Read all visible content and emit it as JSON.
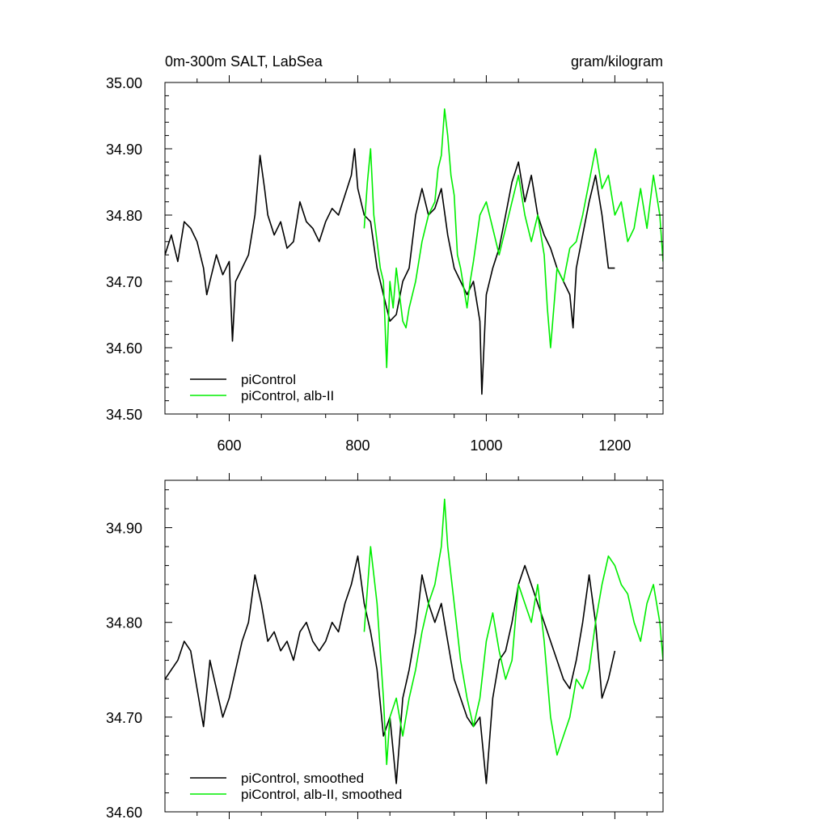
{
  "chart_data": [
    {
      "type": "line",
      "title": "0m-300m SALT, LabSea",
      "units": "gram/kilogram",
      "xlim": [
        500,
        1275
      ],
      "ylim": [
        34.5,
        35.0
      ],
      "xticks": [
        600,
        800,
        1000,
        1200
      ],
      "xtick_labels": [
        "600",
        "800",
        "1000",
        "1200"
      ],
      "yticks": [
        34.5,
        34.6,
        34.7,
        34.8,
        34.9,
        35.0
      ],
      "ytick_labels": [
        "34.50",
        "34.60",
        "34.70",
        "34.80",
        "34.90",
        "35.00"
      ],
      "grid": false,
      "legend_position": "bottom-left",
      "series": [
        {
          "name": "piControl",
          "color": "#000000",
          "x": [
            500,
            510,
            520,
            530,
            540,
            550,
            560,
            565,
            570,
            580,
            590,
            600,
            605,
            610,
            620,
            630,
            640,
            648,
            655,
            660,
            670,
            680,
            690,
            700,
            710,
            720,
            730,
            740,
            750,
            760,
            770,
            780,
            790,
            795,
            800,
            810,
            820,
            830,
            840,
            850,
            860,
            870,
            880,
            890,
            900,
            910,
            920,
            930,
            940,
            950,
            960,
            970,
            980,
            990,
            993,
            1000,
            1010,
            1020,
            1030,
            1040,
            1050,
            1060,
            1070,
            1080,
            1090,
            1100,
            1110,
            1120,
            1130,
            1135,
            1140,
            1150,
            1160,
            1170,
            1180,
            1190,
            1200
          ],
          "y": [
            34.74,
            34.77,
            34.73,
            34.79,
            34.78,
            34.76,
            34.72,
            34.68,
            34.7,
            34.74,
            34.71,
            34.73,
            34.61,
            34.7,
            34.72,
            34.74,
            34.8,
            34.89,
            34.84,
            34.8,
            34.77,
            34.79,
            34.75,
            34.76,
            34.82,
            34.79,
            34.78,
            34.76,
            34.79,
            34.81,
            34.8,
            34.83,
            34.86,
            34.9,
            34.84,
            34.8,
            34.79,
            34.72,
            34.68,
            34.64,
            34.65,
            34.7,
            34.72,
            34.8,
            34.84,
            34.8,
            34.81,
            34.84,
            34.77,
            34.72,
            34.7,
            34.68,
            34.7,
            34.64,
            34.53,
            34.68,
            34.72,
            34.75,
            34.8,
            34.85,
            34.88,
            34.82,
            34.86,
            34.8,
            34.77,
            34.75,
            34.72,
            34.7,
            34.68,
            34.63,
            34.72,
            34.77,
            34.82,
            34.86,
            34.8,
            34.72,
            34.72
          ]
        },
        {
          "name": "piControl, alb-II",
          "color": "#00ee00",
          "x": [
            810,
            815,
            820,
            825,
            830,
            835,
            840,
            845,
            850,
            855,
            860,
            865,
            870,
            875,
            880,
            890,
            900,
            910,
            920,
            925,
            930,
            935,
            940,
            945,
            950,
            955,
            960,
            965,
            970,
            975,
            980,
            990,
            1000,
            1010,
            1020,
            1030,
            1040,
            1050,
            1060,
            1070,
            1080,
            1090,
            1095,
            1100,
            1105,
            1110,
            1120,
            1130,
            1140,
            1150,
            1160,
            1170,
            1180,
            1190,
            1200,
            1210,
            1220,
            1230,
            1240,
            1250,
            1260,
            1270,
            1275
          ],
          "y": [
            34.78,
            34.85,
            34.9,
            34.8,
            34.76,
            34.72,
            34.7,
            34.57,
            34.7,
            34.66,
            34.72,
            34.68,
            34.64,
            34.63,
            34.66,
            34.7,
            34.76,
            34.8,
            34.82,
            34.87,
            34.89,
            34.96,
            34.92,
            34.86,
            34.83,
            34.74,
            34.72,
            34.69,
            34.66,
            34.7,
            34.73,
            34.8,
            34.82,
            34.78,
            34.74,
            34.78,
            34.82,
            34.86,
            34.8,
            34.76,
            34.8,
            34.74,
            34.66,
            34.6,
            34.66,
            34.72,
            34.7,
            34.75,
            34.76,
            34.8,
            34.85,
            34.9,
            34.84,
            34.86,
            34.8,
            34.82,
            34.76,
            34.78,
            34.84,
            34.78,
            34.86,
            34.8,
            34.73
          ]
        }
      ]
    },
    {
      "type": "line",
      "xlim": [
        500,
        1275
      ],
      "ylim": [
        34.6,
        34.95
      ],
      "xticks": [
        600,
        800,
        1000,
        1200
      ],
      "yticks": [
        34.6,
        34.7,
        34.8,
        34.9
      ],
      "ytick_labels": [
        "34.60",
        "34.70",
        "34.80",
        "34.90"
      ],
      "grid": false,
      "legend_position": "bottom-left",
      "series": [
        {
          "name": "piControl, smoothed",
          "color": "#000000",
          "x": [
            500,
            510,
            520,
            530,
            540,
            550,
            560,
            570,
            580,
            590,
            600,
            610,
            620,
            630,
            640,
            650,
            660,
            670,
            680,
            690,
            700,
            710,
            720,
            730,
            740,
            750,
            760,
            770,
            780,
            790,
            800,
            810,
            820,
            830,
            840,
            850,
            860,
            870,
            880,
            890,
            900,
            910,
            920,
            930,
            940,
            950,
            960,
            970,
            980,
            990,
            1000,
            1010,
            1020,
            1030,
            1040,
            1050,
            1060,
            1070,
            1080,
            1090,
            1100,
            1110,
            1120,
            1130,
            1140,
            1150,
            1160,
            1170,
            1180,
            1190,
            1200
          ],
          "y": [
            34.74,
            34.75,
            34.76,
            34.78,
            34.77,
            34.73,
            34.69,
            34.76,
            34.73,
            34.7,
            34.72,
            34.75,
            34.78,
            34.8,
            34.85,
            34.82,
            34.78,
            34.79,
            34.77,
            34.78,
            34.76,
            34.79,
            34.8,
            34.78,
            34.77,
            34.78,
            34.8,
            34.79,
            34.82,
            34.84,
            34.87,
            34.82,
            34.79,
            34.75,
            34.68,
            34.7,
            34.63,
            34.72,
            34.75,
            34.79,
            34.85,
            34.82,
            34.8,
            34.82,
            34.78,
            34.74,
            34.72,
            34.7,
            34.69,
            34.7,
            34.63,
            34.72,
            34.76,
            34.77,
            34.8,
            34.84,
            34.86,
            34.84,
            34.82,
            34.8,
            34.78,
            34.76,
            34.74,
            34.73,
            34.76,
            34.8,
            34.85,
            34.8,
            34.72,
            34.74,
            34.77
          ]
        },
        {
          "name": "piControl, alb-II, smoothed",
          "color": "#00ee00",
          "x": [
            810,
            820,
            830,
            840,
            845,
            850,
            860,
            870,
            880,
            890,
            900,
            910,
            920,
            930,
            935,
            940,
            950,
            960,
            970,
            980,
            990,
            1000,
            1010,
            1020,
            1030,
            1040,
            1050,
            1060,
            1070,
            1080,
            1090,
            1100,
            1110,
            1120,
            1130,
            1140,
            1150,
            1160,
            1170,
            1180,
            1190,
            1200,
            1210,
            1220,
            1230,
            1240,
            1250,
            1260,
            1270,
            1275
          ],
          "y": [
            34.79,
            34.88,
            34.82,
            34.72,
            34.65,
            34.7,
            34.72,
            34.68,
            34.72,
            34.75,
            34.79,
            34.82,
            34.84,
            34.88,
            34.93,
            34.88,
            34.82,
            34.76,
            34.72,
            34.69,
            34.72,
            34.78,
            34.81,
            34.77,
            34.74,
            34.76,
            34.84,
            34.82,
            34.8,
            34.84,
            34.78,
            34.7,
            34.66,
            34.68,
            34.7,
            34.74,
            34.73,
            34.75,
            34.8,
            34.84,
            34.87,
            34.86,
            34.84,
            34.83,
            34.8,
            34.78,
            34.82,
            34.84,
            34.8,
            34.76
          ]
        }
      ]
    }
  ]
}
